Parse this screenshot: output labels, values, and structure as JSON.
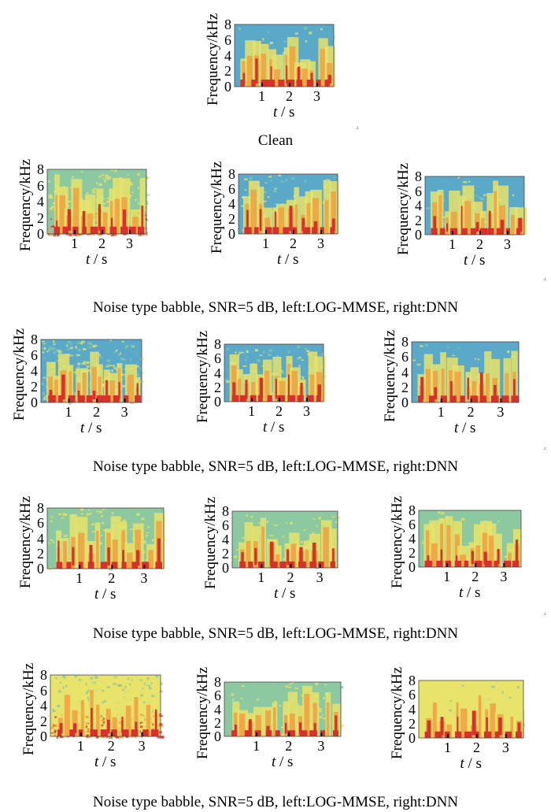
{
  "figure": {
    "caption_top": "Clean",
    "captions": [
      "Noise type babble, SNR=5 dB, left:LOG-MMSE, right:DNN",
      "Noise type babble, SNR=5 dB, left:LOG-MMSE, right:DNN",
      "Noise type babble, SNR=5 dB, left:LOG-MMSE, right:DNN",
      "Noise type babble, SNR=5 dB, left:LOG-MMSE, right:DNN"
    ]
  },
  "colors": {
    "bg_blue": "#5aa9c9",
    "bg_green": "#8cc8a0",
    "bg_yellow": "#e8e36a",
    "hot_orange": "#f0a040",
    "hot_red": "#d8302a"
  },
  "chart_data": [
    {
      "type": "heatmap",
      "panel": "clean",
      "xlabel_var": "t",
      "xlabel_unit": "/ s",
      "ylabel": "Frequency/kHz",
      "xticks": [
        "1",
        "2",
        "3"
      ],
      "yticks": [
        "0",
        "2",
        "4",
        "6",
        "8"
      ],
      "xlim": [
        0,
        3.6
      ],
      "ylim": [
        0,
        8
      ],
      "noise": "none",
      "bg": "blue"
    },
    {
      "type": "heatmap",
      "panel": "row1-noisy",
      "xlabel_var": "t",
      "xlabel_unit": "/ s",
      "ylabel": "Frequency/kHz",
      "xticks": [
        "1",
        "2",
        "3"
      ],
      "yticks": [
        "0",
        "2",
        "4",
        "6",
        "8"
      ],
      "xlim": [
        0,
        3.6
      ],
      "ylim": [
        0,
        8
      ],
      "noise": "heavy",
      "bg": "green"
    },
    {
      "type": "heatmap",
      "panel": "row1-logmmse",
      "xlabel_var": "t",
      "xlabel_unit": "/ s",
      "ylabel": "Frequency/kHz",
      "xticks": [
        "1",
        "2",
        "3"
      ],
      "yticks": [
        "0",
        "2",
        "4",
        "6",
        "8"
      ],
      "xlim": [
        0,
        3.6
      ],
      "ylim": [
        0,
        8
      ],
      "noise": "light",
      "bg": "blue"
    },
    {
      "type": "heatmap",
      "panel": "row1-dnn",
      "xlabel_var": "t",
      "xlabel_unit": "/ s",
      "ylabel": "Frequency/kHz",
      "xticks": [
        "1",
        "2",
        "3"
      ],
      "yticks": [
        "0",
        "2",
        "4",
        "6",
        "8"
      ],
      "xlim": [
        0,
        3.6
      ],
      "ylim": [
        0,
        8
      ],
      "noise": "none",
      "bg": "blue"
    },
    {
      "type": "heatmap",
      "panel": "row2-noisy",
      "xlabel_var": "t",
      "xlabel_unit": "/ s",
      "ylabel": "Frequency/kHz",
      "xticks": [
        "1",
        "2",
        "3"
      ],
      "yticks": [
        "0",
        "2",
        "4",
        "6",
        "8"
      ],
      "xlim": [
        0,
        3.6
      ],
      "ylim": [
        0,
        8
      ],
      "noise": "medium",
      "bg": "blue"
    },
    {
      "type": "heatmap",
      "panel": "row2-logmmse",
      "xlabel_var": "t",
      "xlabel_unit": "/ s",
      "ylabel": "Frequency/kHz",
      "xticks": [
        "1",
        "2",
        "3"
      ],
      "yticks": [
        "0",
        "2",
        "4",
        "6",
        "8"
      ],
      "xlim": [
        0,
        3.6
      ],
      "ylim": [
        0,
        8
      ],
      "noise": "light",
      "bg": "blue"
    },
    {
      "type": "heatmap",
      "panel": "row2-dnn",
      "xlabel_var": "t",
      "xlabel_unit": "/ s",
      "ylabel": "Frequency/kHz",
      "xticks": [
        "1",
        "2",
        "3"
      ],
      "yticks": [
        "0",
        "2",
        "4",
        "6",
        "8"
      ],
      "xlim": [
        0,
        3.6
      ],
      "ylim": [
        0,
        8
      ],
      "noise": "none",
      "bg": "blue"
    },
    {
      "type": "heatmap",
      "panel": "row3-noisy",
      "xlabel_var": "t",
      "xlabel_unit": "/ s",
      "ylabel": "Frequency/kHz",
      "xticks": [
        "1",
        "2",
        "3"
      ],
      "yticks": [
        "0",
        "2",
        "4",
        "6",
        "8"
      ],
      "xlim": [
        0,
        3.6
      ],
      "ylim": [
        0,
        8
      ],
      "noise": "medium",
      "bg": "green"
    },
    {
      "type": "heatmap",
      "panel": "row3-logmmse",
      "xlabel_var": "t",
      "xlabel_unit": "/ s",
      "ylabel": "Frequency/kHz",
      "xticks": [
        "1",
        "2",
        "3"
      ],
      "yticks": [
        "0",
        "2",
        "4",
        "6",
        "8"
      ],
      "xlim": [
        0,
        3.6
      ],
      "ylim": [
        0,
        8
      ],
      "noise": "light",
      "bg": "green"
    },
    {
      "type": "heatmap",
      "panel": "row3-dnn",
      "xlabel_var": "t",
      "xlabel_unit": "/ s",
      "ylabel": "Frequency/kHz",
      "xticks": [
        "1",
        "2",
        "3"
      ],
      "yticks": [
        "0",
        "2",
        "4",
        "6",
        "8"
      ],
      "xlim": [
        0,
        3.6
      ],
      "ylim": [
        0,
        8
      ],
      "noise": "none",
      "bg": "green"
    },
    {
      "type": "heatmap",
      "panel": "row4-noisy",
      "xlabel_var": "t",
      "xlabel_unit": "/ s",
      "ylabel": "Frequency/kHz",
      "xticks": [
        "1",
        "2",
        "3"
      ],
      "yticks": [
        "0",
        "2",
        "4",
        "6",
        "8"
      ],
      "xlim": [
        0,
        3.6
      ],
      "ylim": [
        0,
        8
      ],
      "noise": "heavy",
      "bg": "yellow"
    },
    {
      "type": "heatmap",
      "panel": "row4-logmmse",
      "xlabel_var": "t",
      "xlabel_unit": "/ s",
      "ylabel": "Frequency/kHz",
      "xticks": [
        "1",
        "2",
        "3"
      ],
      "yticks": [
        "0",
        "2",
        "4",
        "6",
        "8"
      ],
      "xlim": [
        0,
        3.6
      ],
      "ylim": [
        0,
        8
      ],
      "noise": "light",
      "bg": "green"
    },
    {
      "type": "heatmap",
      "panel": "row4-dnn",
      "xlabel_var": "t",
      "xlabel_unit": "/ s",
      "ylabel": "Frequency/kHz",
      "xticks": [
        "1",
        "2",
        "3"
      ],
      "yticks": [
        "0",
        "2",
        "4",
        "6",
        "8"
      ],
      "xlim": [
        0,
        3.6
      ],
      "ylim": [
        0,
        8
      ],
      "noise": "none",
      "bg": "yellow"
    }
  ]
}
